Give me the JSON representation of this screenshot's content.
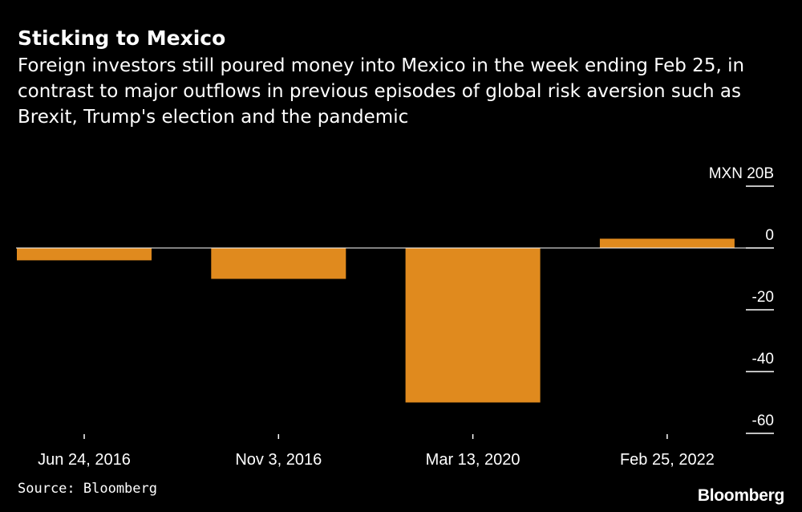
{
  "header": {
    "title": "Sticking to Mexico",
    "subtitle": "Foreign investors still poured money into Mexico in the week ending Feb 25, in contrast to major outflows in previous episodes of global risk aversion such as Brexit, Trump's election and the pandemic"
  },
  "footer": {
    "source": "Source: Bloomberg",
    "logo": "Bloomberg"
  },
  "colors": {
    "background": "#000000",
    "bar": "#e08a1e",
    "text": "#ffffff",
    "axis": "#ffffff"
  },
  "chart_data": {
    "type": "bar",
    "title": "Sticking to Mexico",
    "categories": [
      "Jun 24, 2016",
      "Nov 3, 2016",
      "Mar 13, 2020",
      "Feb 25, 2022"
    ],
    "values": [
      -4,
      -10,
      -50,
      3
    ],
    "unit": "MXN",
    "ylim": [
      -60,
      20
    ],
    "yticks": [
      20,
      0,
      -20,
      -40,
      -60
    ],
    "ytick_labels": [
      "MXN 20B",
      "0",
      "-20",
      "-40",
      "-60"
    ],
    "y_axis_position": "right",
    "grid": false,
    "legend": "none"
  }
}
